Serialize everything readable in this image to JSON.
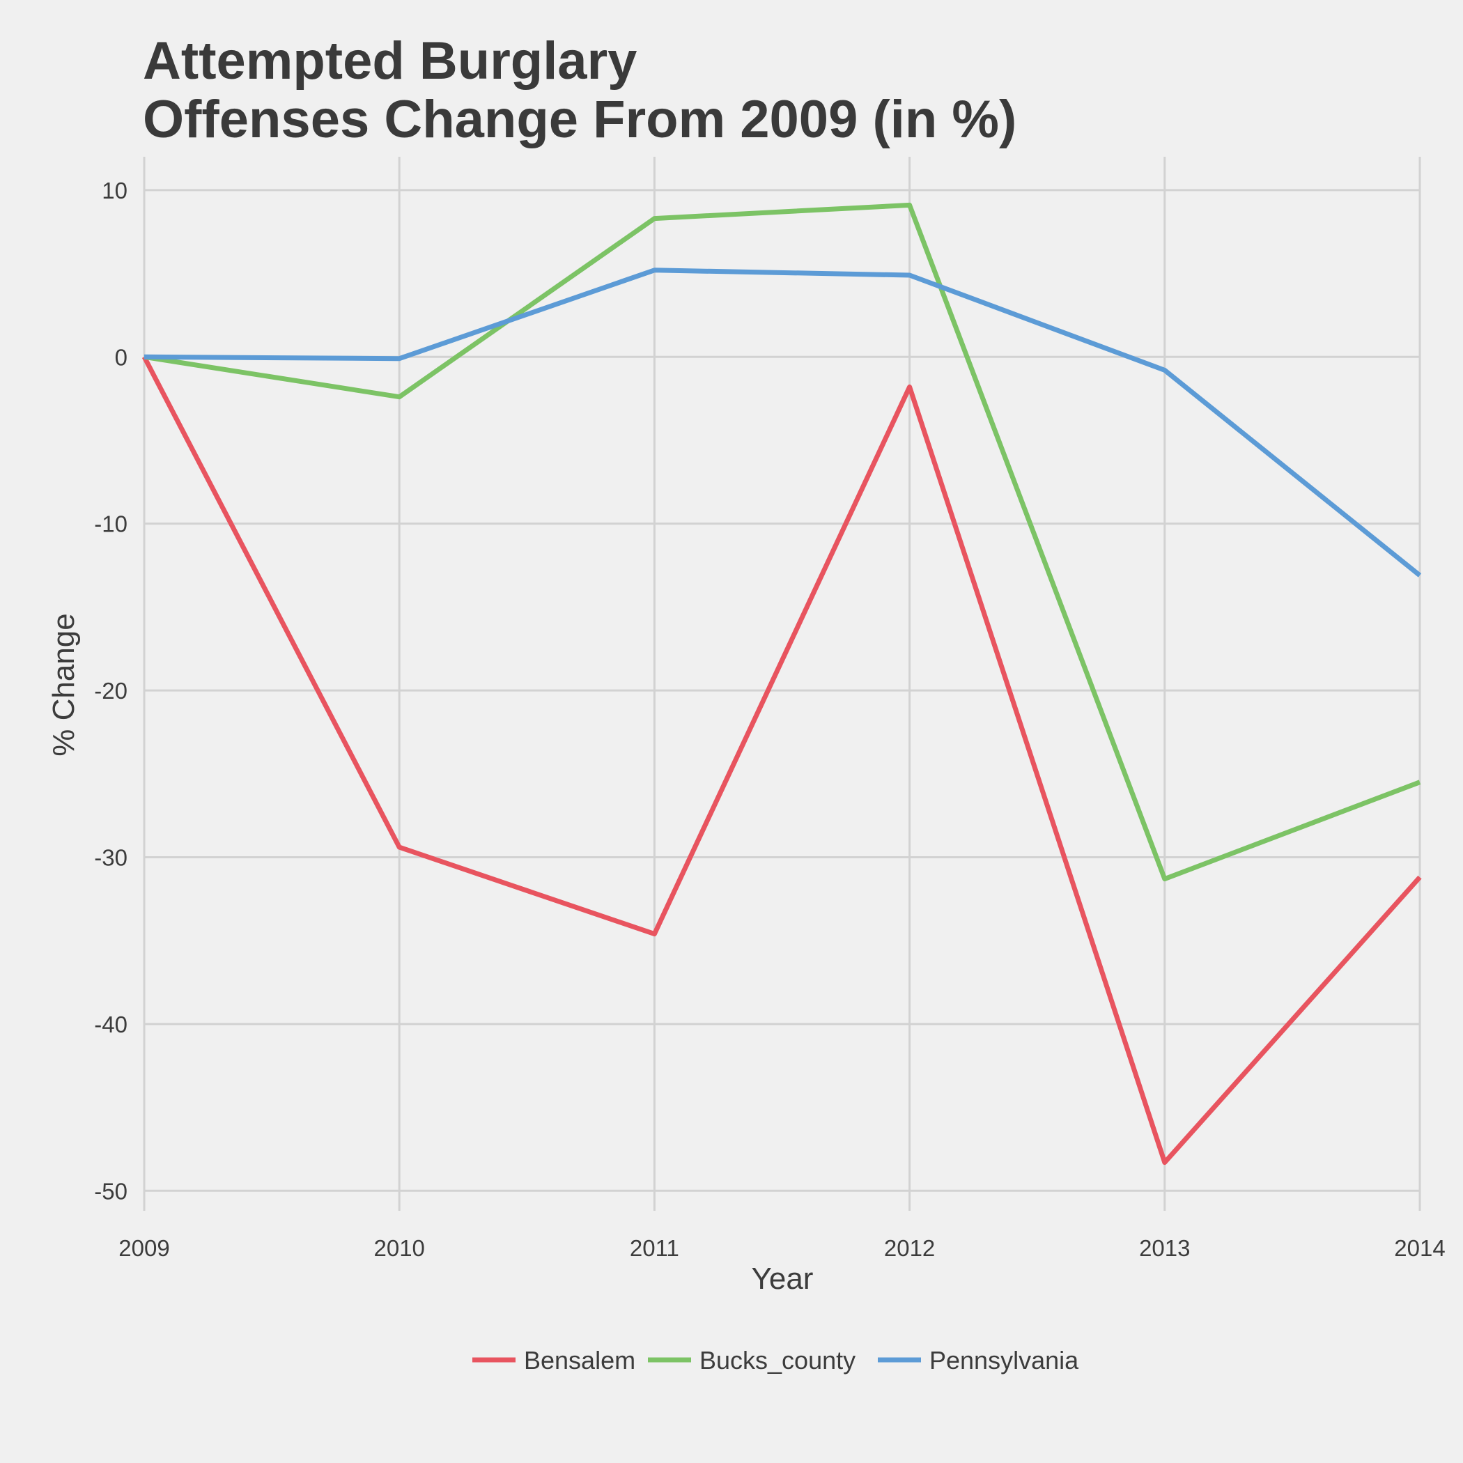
{
  "chart_data": {
    "type": "line",
    "title_lines": [
      "Attempted Burglary",
      "Offenses Change From 2009 (in %)"
    ],
    "xlabel": "Year",
    "ylabel": "% Change",
    "x": [
      2009,
      2010,
      2011,
      2012,
      2013,
      2014
    ],
    "x_tick_labels": [
      "2009",
      "2010",
      "2011",
      "2012",
      "2013",
      "2014"
    ],
    "y_ticks": [
      10,
      0,
      -10,
      -20,
      -30,
      -40,
      -50
    ],
    "y_tick_labels": [
      "10",
      "0",
      "-10",
      "-20",
      "-30",
      "-40",
      "-50"
    ],
    "xlim": [
      2009,
      2014
    ],
    "ylim": [
      -51.2,
      12
    ],
    "grid": true,
    "legend_position": "bottom",
    "series": [
      {
        "name": "Bensalem",
        "color": "#e8545f",
        "values": [
          0,
          -29.4,
          -34.6,
          -1.8,
          -48.3,
          -31.2
        ]
      },
      {
        "name": "Bucks_county",
        "color": "#7cc365",
        "values": [
          0,
          -2.4,
          8.3,
          9.1,
          -31.3,
          -25.5
        ]
      },
      {
        "name": "Pennsylvania",
        "color": "#5c9bd6",
        "values": [
          0,
          -0.1,
          5.2,
          4.9,
          -0.8,
          -13.1
        ]
      }
    ]
  }
}
